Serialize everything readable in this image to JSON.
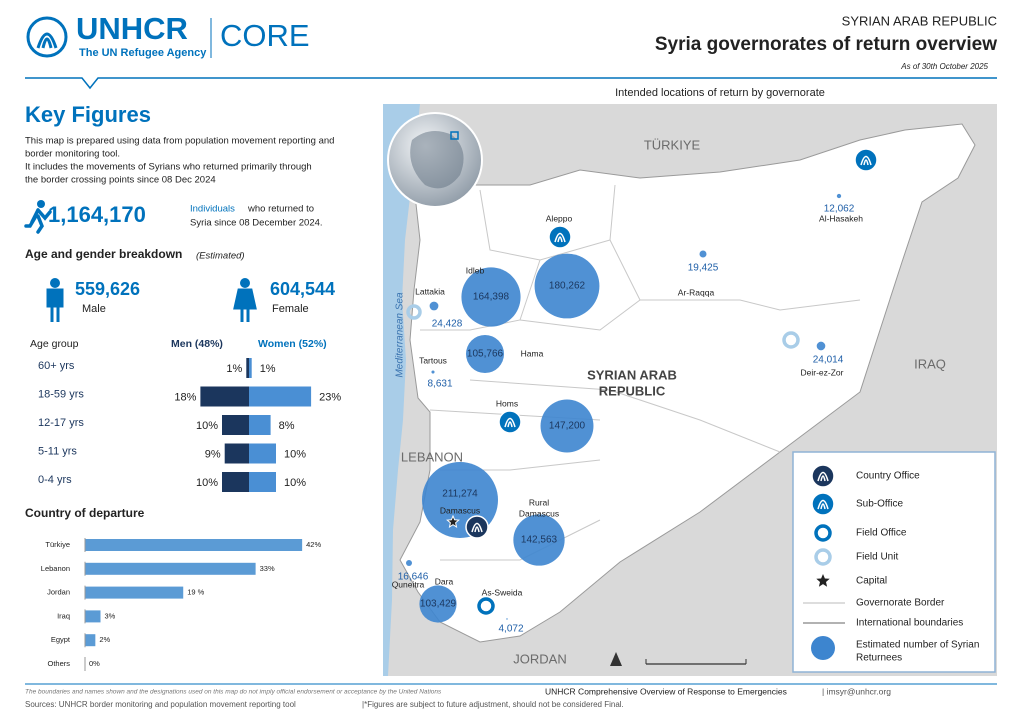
{
  "header": {
    "org": "UNHCR",
    "tagline": "The UN Refugee Agency",
    "product": "CORE",
    "country": "SYRIAN ARAB REPUBLIC",
    "title": "Syria governorates of return overview",
    "date": "As of 30th October 2025"
  },
  "key_figures": {
    "title": "Key Figures",
    "description": [
      "This map is prepared using data from population movement reporting and",
      "border  monitoring tool.",
      "It includes the movements of Syrians who returned primarily through",
      "the border crossing points since 08 Dec 2024"
    ],
    "returnees": {
      "value": 1164170,
      "label": "1,164,170",
      "highlight": "Individuals",
      "text": [
        "who returned to",
        "Syria since 08 December 2024."
      ]
    }
  },
  "age_gender": {
    "title": "Age and gender breakdown",
    "note": "(Estimated)",
    "male": {
      "value": 559626,
      "label": "559,626",
      "name": "Male"
    },
    "female": {
      "value": 604544,
      "label": "604,544",
      "name": "Female"
    },
    "group_header": "Age group",
    "men_header": "Men (48%)",
    "women_header": "Women (52%)",
    "groups": [
      "60+ yrs",
      "18-59 yrs",
      "12-17 yrs",
      "5-11 yrs",
      "0-4 yrs"
    ],
    "men": [
      1,
      18,
      10,
      9,
      10
    ],
    "women": [
      1,
      23,
      8,
      10,
      10
    ],
    "men_labels": [
      "1%",
      "18%",
      "10%",
      "9%",
      "10%"
    ],
    "women_labels": [
      "1%",
      "23%",
      "8%",
      "10%",
      "10%"
    ]
  },
  "departure": {
    "title": "Country of departure",
    "categories": [
      "Türkiye",
      "Lebanon",
      "Jordan",
      "Iraq",
      "Egypt",
      "Others"
    ],
    "values": [
      42,
      33,
      19,
      3,
      2,
      0
    ],
    "value_labels": [
      "42%",
      "33%",
      "19 %",
      "3%",
      "2%",
      "0%"
    ]
  },
  "map": {
    "title": "Intended locations of return by governorate",
    "countries": [
      "TÜRKIYE",
      "IRAQ",
      "LEBANON",
      "JORDAN"
    ],
    "sea": "Mediterranean Sea",
    "country_label": [
      "SYRIAN ARAB",
      "REPUBLIC"
    ],
    "governorates": [
      {
        "name": "Aleppo",
        "value": 180262,
        "label": "180,262"
      },
      {
        "name": "Idleb",
        "value": 164398,
        "label": "164,398"
      },
      {
        "name": "Lattakia",
        "value": 24428,
        "label": "24,428"
      },
      {
        "name": "Tartous",
        "value": 8631,
        "label": "8,631"
      },
      {
        "name": "Hama",
        "value": 105766,
        "label": "105,766"
      },
      {
        "name": "Homs",
        "value": 147200,
        "label": "147,200"
      },
      {
        "name": "Ar-Raqqa",
        "value": 19425,
        "label": "19,425"
      },
      {
        "name": "Al-Hasakeh",
        "value": 12062,
        "label": "12,062"
      },
      {
        "name": "Deir-ez-Zor",
        "value": 24014,
        "label": "24,014"
      },
      {
        "name": "Damascus",
        "value": 211274,
        "label": "211,274"
      },
      {
        "name": [
          "Rural",
          "Damascus"
        ],
        "value": 142563,
        "label": "142,563"
      },
      {
        "name": "Quneitra",
        "value": 16646,
        "label": "16,646"
      },
      {
        "name": "Dara",
        "value": 103429,
        "label": "103,429"
      },
      {
        "name": "As-Sweida",
        "value": 4072,
        "label": "4,072"
      }
    ],
    "legend": {
      "items": [
        "Country Office",
        "Sub-Office",
        "Field Office",
        "Field Unit",
        "Capital",
        "Governorate Border",
        "International boundaries"
      ],
      "returnees": [
        "Estimated number of Syrian",
        "Returnees"
      ]
    }
  },
  "footer": {
    "disclaimer": "The boundaries and names shown and the designations used on this map do not imply official endorsement or acceptance by the United Nations",
    "credit": "UNHCR Comprehensive Overview of Response to Emergencies",
    "email": "| imsyr@unhcr.org",
    "sources": "Sources: UNHCR border monitoring and population movement reporting tool",
    "note": "|*Figures are subject to future adjustment, should not be considered Final."
  }
}
